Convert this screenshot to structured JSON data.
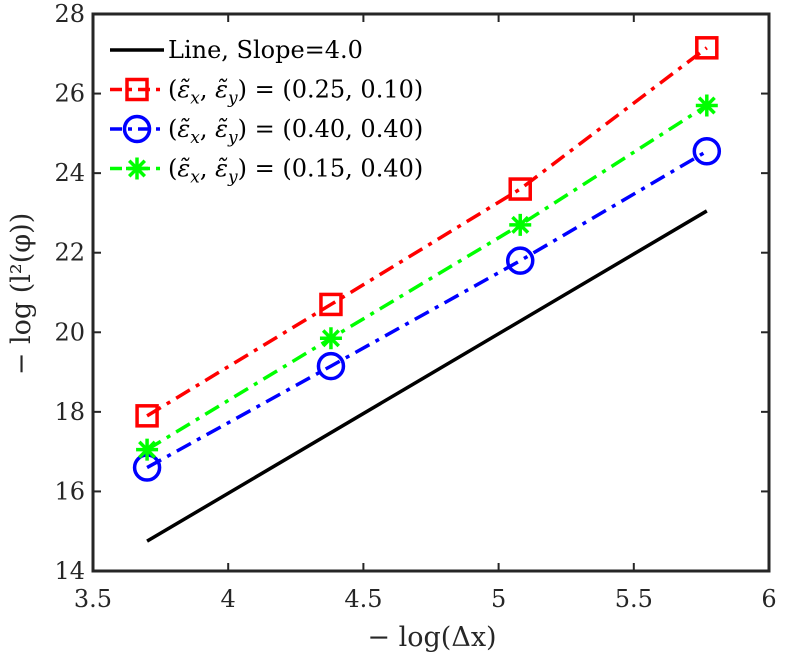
{
  "chart_data": {
    "type": "line",
    "title": "",
    "xlabel": "− log(Δx)",
    "ylabel": "− log (l²(φ))",
    "xlim": [
      3.5,
      6
    ],
    "ylim": [
      14,
      28
    ],
    "xticks": [
      3.5,
      4,
      4.5,
      5,
      5.5,
      6
    ],
    "xtick_labels": [
      "3.5",
      "4",
      "4.5",
      "5",
      "5.5",
      "6"
    ],
    "yticks": [
      14,
      16,
      18,
      20,
      22,
      24,
      26,
      28
    ],
    "ytick_labels": [
      "14",
      "16",
      "18",
      "20",
      "22",
      "24",
      "26",
      "28"
    ],
    "grid": false,
    "legend_position": "top-left",
    "series": [
      {
        "name": "Line, Slope=4.0",
        "legend": {
          "prefix": "Line, Slope=4.0",
          "values": ""
        },
        "x": [
          3.7,
          5.77
        ],
        "y": [
          14.75,
          23.05
        ],
        "color": "#000000",
        "linestyle": "solid",
        "marker": "none"
      },
      {
        "name": "(ε̃x, ε̃y) = (0.25, 0.10)",
        "legend": {
          "prefix": "(ε̃",
          "values": "(0.25, 0.10)"
        },
        "x": [
          3.7,
          4.38,
          5.08,
          5.77
        ],
        "y": [
          17.9,
          20.7,
          23.6,
          27.15
        ],
        "color": "#ff0000",
        "linestyle": "dashdot",
        "marker": "square"
      },
      {
        "name": "(ε̃x, ε̃y) = (0.40, 0.40)",
        "legend": {
          "prefix": "(ε̃",
          "values": "(0.40, 0.40)"
        },
        "x": [
          3.7,
          4.38,
          5.08,
          5.77
        ],
        "y": [
          16.6,
          19.15,
          21.8,
          24.55
        ],
        "color": "#0000ff",
        "linestyle": "dashdot",
        "marker": "circle"
      },
      {
        "name": "(ε̃x, ε̃y) = (0.15, 0.40)",
        "legend": {
          "prefix": "(ε̃",
          "values": "(0.15, 0.40)"
        },
        "x": [
          3.7,
          4.38,
          5.08,
          5.77
        ],
        "y": [
          17.05,
          19.85,
          22.7,
          25.7
        ],
        "color": "#00ff00",
        "linestyle": "dashdot",
        "marker": "asterisk"
      }
    ]
  }
}
